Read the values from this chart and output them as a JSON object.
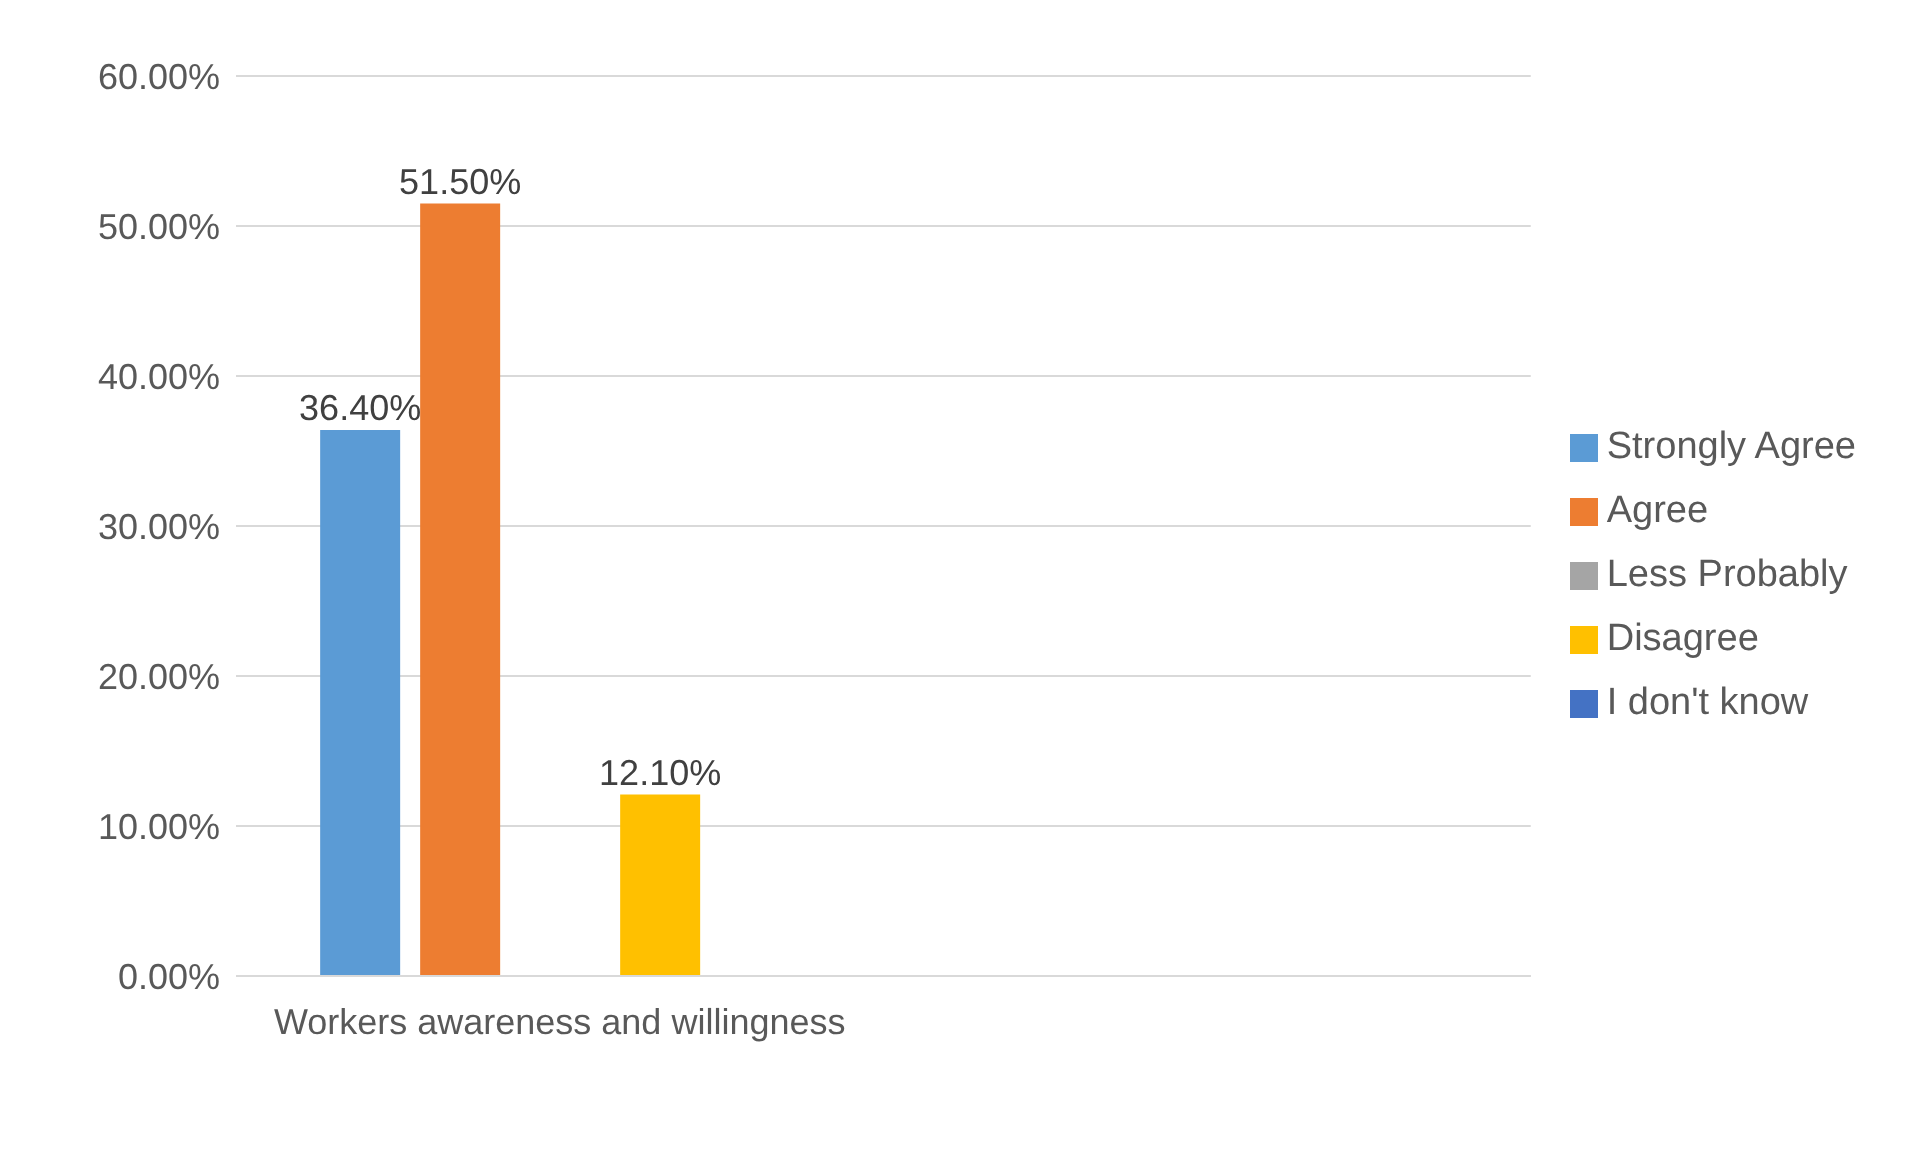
{
  "chart_data": {
    "type": "bar",
    "categories": [
      "Workers awareness and willingness",
      null
    ],
    "series": [
      {
        "name": "Strongly Agree",
        "color": "#5b9bd5",
        "values": [
          36.4,
          null
        ],
        "value_labels": [
          "36.40%",
          null
        ]
      },
      {
        "name": "Agree",
        "color": "#ed7d31",
        "values": [
          51.5,
          null
        ],
        "value_labels": [
          "51.50%",
          null
        ]
      },
      {
        "name": "Less Probably",
        "color": "#a5a5a5",
        "values": [
          0,
          null
        ],
        "value_labels": [
          null,
          null
        ]
      },
      {
        "name": "Disagree",
        "color": "#ffc000",
        "values": [
          12.1,
          null
        ],
        "value_labels": [
          "12.10%",
          null
        ]
      },
      {
        "name": "I don't know",
        "color": "#4472c4",
        "values": [
          0,
          null
        ],
        "value_labels": [
          null,
          null
        ]
      }
    ],
    "ylim": [
      0,
      60
    ],
    "yticks": [
      {
        "value": 0,
        "label": "0.00%"
      },
      {
        "value": 10,
        "label": "10.00%"
      },
      {
        "value": 20,
        "label": "20.00%"
      },
      {
        "value": 30,
        "label": "30.00%"
      },
      {
        "value": 40,
        "label": "40.00%"
      },
      {
        "value": 50,
        "label": "50.00%"
      },
      {
        "value": 60,
        "label": "60.00%"
      }
    ],
    "grid": "y",
    "legend": "right"
  }
}
